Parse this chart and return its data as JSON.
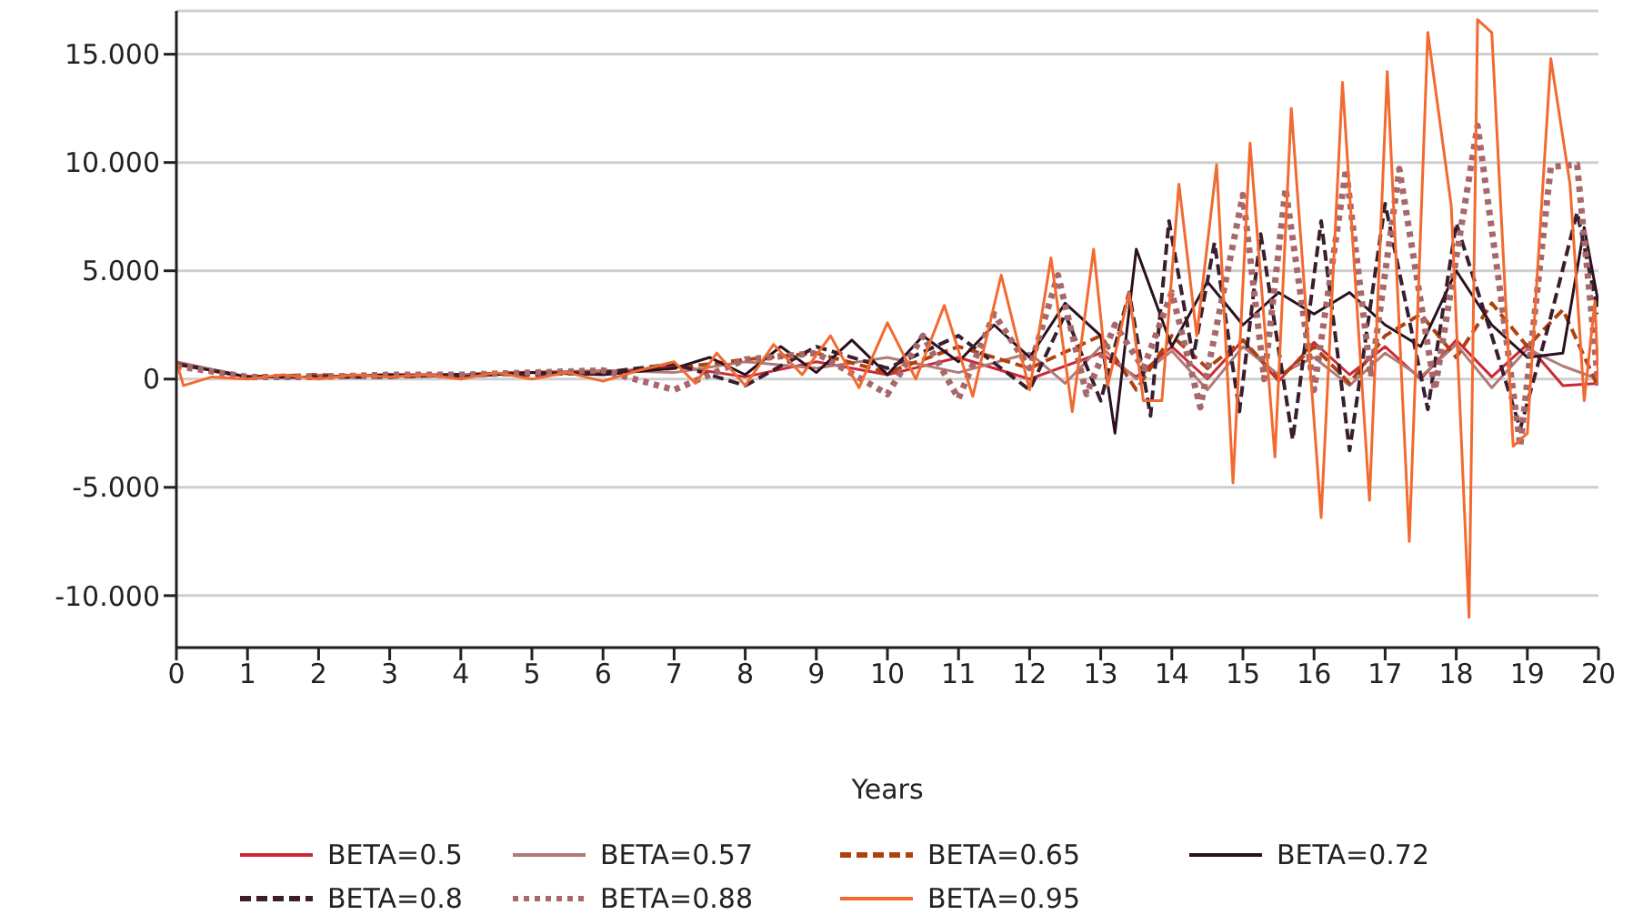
{
  "chart_data": {
    "type": "line",
    "xlabel": "Years",
    "xlim": [
      0,
      20
    ],
    "xticks": [
      0,
      1,
      2,
      3,
      4,
      5,
      6,
      7,
      8,
      9,
      10,
      11,
      12,
      13,
      14,
      15,
      16,
      17,
      18,
      19,
      20
    ],
    "ylim": [
      -12.4,
      17
    ],
    "yticks": [
      {
        "value": -10,
        "label": "-10.000"
      },
      {
        "value": -5,
        "label": "-5.000"
      },
      0,
      {
        "value": 5,
        "label": "5.000"
      },
      {
        "value": 10,
        "label": "10.000"
      },
      {
        "value": 15,
        "label": "15.000"
      }
    ],
    "grid": "y",
    "legend": "bottom",
    "marker": "none",
    "series": [
      {
        "name": "BETA=0.5",
        "color": "#cc2936",
        "line_style": "solid",
        "x": [
          0,
          1,
          2,
          3,
          4,
          5,
          6,
          7,
          8,
          9,
          10,
          11,
          12,
          13,
          13.5,
          14,
          14.5,
          15,
          15.5,
          16,
          16.5,
          17,
          17.5,
          18,
          18.5,
          19,
          19.5,
          20
        ],
        "values": [
          0.7,
          0.1,
          0.1,
          0.2,
          0.2,
          0.3,
          0.3,
          0.6,
          0.1,
          0.8,
          0.2,
          1,
          0,
          1.2,
          0.1,
          1.5,
          0,
          1.8,
          -0.1,
          1.7,
          0.2,
          1.5,
          0,
          1.8,
          0.1,
          1.6,
          -0.3,
          -0.2
        ]
      },
      {
        "name": "BETA=0.57",
        "color": "#b07a78",
        "line_style": "solid",
        "x": [
          0,
          1,
          2,
          3,
          4,
          5,
          6,
          7,
          8,
          9,
          10,
          11,
          12,
          12.5,
          13,
          13.5,
          14,
          14.5,
          15,
          15.5,
          16,
          16.5,
          17,
          17.5,
          18,
          18.5,
          19,
          19.5,
          20
        ],
        "values": [
          0.8,
          0.1,
          0.1,
          0.2,
          0.2,
          0.3,
          0.4,
          0.3,
          0.8,
          0.5,
          1,
          0.3,
          1.2,
          -0.2,
          1.5,
          0,
          1.3,
          -0.5,
          1.5,
          0.2,
          1,
          -0.3,
          1.2,
          0.1,
          1.6,
          -0.4,
          1.4,
          0.6,
          0
        ]
      },
      {
        "name": "BETA=0.65",
        "color": "#b0400f",
        "line_style": "dashed",
        "x": [
          0,
          1,
          2,
          3,
          4,
          5,
          6,
          7,
          8,
          9,
          10,
          11,
          12,
          13,
          13.5,
          14,
          14.5,
          15,
          15.5,
          16,
          16.5,
          17,
          17.5,
          18,
          18.5,
          19,
          19.5,
          20
        ],
        "values": [
          0.7,
          0.1,
          0.2,
          0.1,
          0.2,
          0.3,
          0.3,
          0.5,
          0.9,
          1.2,
          0.3,
          1.5,
          0.5,
          2,
          -0.5,
          2,
          0.5,
          1.8,
          0,
          1.5,
          -0.2,
          2,
          3,
          1,
          3.5,
          1.5,
          3.2,
          -0.4
        ]
      },
      {
        "name": "BETA=0.72",
        "color": "#2a1020",
        "line_style": "solid",
        "x": [
          0,
          1,
          2,
          3,
          4,
          5,
          6,
          7,
          7.5,
          8,
          8.5,
          9,
          9.5,
          10,
          10.5,
          11,
          11.5,
          12,
          12.5,
          13,
          13.2,
          13.5,
          14,
          14.5,
          15,
          15.5,
          16,
          16.5,
          17,
          17.5,
          18,
          18.5,
          19,
          19.5,
          19.8,
          20
        ],
        "values": [
          0.7,
          0.1,
          0.1,
          0.2,
          0.1,
          0.3,
          0.2,
          0.5,
          1,
          0.2,
          1.5,
          0.3,
          1.8,
          0.2,
          2,
          0.8,
          2.5,
          1,
          3.5,
          2,
          -2.5,
          6,
          1.5,
          4.5,
          2.5,
          4,
          3,
          4,
          2.5,
          1.5,
          5,
          2.5,
          1,
          1.2,
          7,
          3.5
        ]
      },
      {
        "name": "BETA=0.8",
        "color": "#3a1e2e",
        "line_style": "dashed",
        "x": [
          0,
          1,
          2,
          3,
          4,
          5,
          6,
          7,
          8,
          9,
          10,
          11,
          12,
          12.5,
          13,
          13.4,
          13.7,
          13.96,
          14.3,
          14.6,
          14.95,
          15.25,
          15.7,
          16.1,
          16.5,
          17,
          17.6,
          18,
          18.5,
          18.9,
          19.3,
          19.7,
          20
        ],
        "values": [
          0.7,
          0.1,
          0.1,
          0.1,
          0.2,
          0.2,
          0.3,
          0.7,
          -0.3,
          1.5,
          0.5,
          2,
          -0.5,
          3,
          -1,
          4,
          -1.7,
          7.3,
          1,
          6.3,
          -1.5,
          6.7,
          -2.8,
          7.3,
          -3.3,
          8.1,
          -1.4,
          7.2,
          2,
          -2.3,
          2.5,
          7.7,
          3
        ]
      },
      {
        "name": "BETA=0.88",
        "color": "#a8686a",
        "line_style": "dotted",
        "x": [
          0,
          1,
          2,
          3,
          4,
          5,
          6,
          7,
          8,
          9,
          10,
          10.5,
          11,
          11.5,
          12,
          12.4,
          12.8,
          13.2,
          13.6,
          14,
          14.4,
          15,
          15.3,
          15.6,
          16,
          16.45,
          16.8,
          17.2,
          17.7,
          18.3,
          18.6,
          18.9,
          19.33,
          19.7,
          20
        ],
        "values": [
          0.6,
          0.1,
          0.1,
          0.2,
          0.2,
          0.3,
          0.4,
          -0.5,
          0.9,
          1.2,
          -0.7,
          2,
          -0.9,
          3,
          0.5,
          4.8,
          -0.7,
          2.5,
          0.5,
          4,
          -1.3,
          8.5,
          0,
          8.8,
          -0.5,
          9.7,
          0.1,
          9.7,
          -0.5,
          11.7,
          4.5,
          -3.1,
          9.8,
          9.9,
          -0.3
        ]
      },
      {
        "name": "BETA=0.95",
        "color": "#f26a30",
        "line_style": "solid",
        "x": [
          0,
          0.1,
          0.5,
          1,
          1.5,
          2,
          2.5,
          3,
          3.5,
          4,
          4.5,
          5,
          5.5,
          6,
          6.5,
          7,
          7.3,
          7.6,
          8,
          8.4,
          8.8,
          9.2,
          9.6,
          10,
          10.4,
          10.8,
          11.2,
          11.6,
          12,
          12.3,
          12.6,
          12.9,
          13.1,
          13.4,
          13.6,
          13.86,
          14.1,
          14.35,
          14.63,
          14.86,
          15.1,
          15.45,
          15.68,
          16.1,
          16.4,
          16.78,
          17.03,
          17.34,
          17.6,
          17.93,
          18.18,
          18.3,
          18.5,
          18.8,
          19,
          19.33,
          19.6,
          19.8,
          19.95,
          20
        ],
        "values": [
          0.8,
          -0.3,
          0.1,
          0,
          0.2,
          0,
          0.2,
          0.1,
          0.2,
          0,
          0.3,
          0,
          0.3,
          -0.1,
          0.4,
          0.8,
          -0.2,
          1.2,
          -0.3,
          1.6,
          0.2,
          2,
          -0.4,
          2.6,
          0,
          3.4,
          -0.8,
          4.8,
          -0.5,
          5.6,
          -1.5,
          6,
          -0.3,
          4,
          -1,
          -1,
          9,
          2,
          9.9,
          -4.8,
          10.9,
          -3.6,
          12.5,
          -6.4,
          13.7,
          -5.6,
          14.2,
          -7.5,
          16,
          8,
          -11,
          16.6,
          16,
          -3.1,
          -2.5,
          14.8,
          9,
          -1,
          3.6,
          -0.2
        ]
      }
    ]
  }
}
